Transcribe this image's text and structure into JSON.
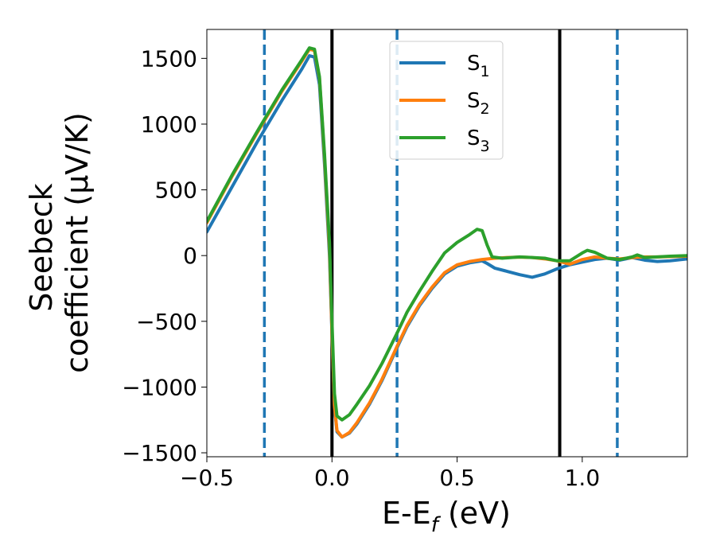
{
  "chart_data": {
    "type": "line",
    "title": "",
    "xlabel": "E-E",
    "xlabel_sub": "f",
    "xlabel_unit": " (eV)",
    "ylabel_line1": "Seebeck",
    "ylabel_line2": "coefficient  (μV/K)",
    "xlim": [
      -0.5,
      1.42
    ],
    "ylim": [
      -1530,
      1720
    ],
    "x_ticks": [
      -0.5,
      0.0,
      0.5,
      1.0
    ],
    "x_tick_labels": [
      "−0.5",
      "0.0",
      "0.5",
      "1.0"
    ],
    "y_ticks": [
      -1500,
      -1000,
      -500,
      0,
      500,
      1000,
      1500
    ],
    "y_tick_labels": [
      "−1500",
      "−1000",
      "−500",
      "0",
      "500",
      "1000",
      "1500"
    ],
    "grid": false,
    "legend_position": "top-center",
    "vertical_lines": [
      {
        "x": -0.27,
        "style": "dashed",
        "color": "#1f77b4"
      },
      {
        "x": 0.0,
        "style": "solid",
        "color": "#000000"
      },
      {
        "x": 0.26,
        "style": "dashed",
        "color": "#1f77b4"
      },
      {
        "x": 0.91,
        "style": "solid",
        "color": "#000000"
      },
      {
        "x": 1.14,
        "style": "dashed",
        "color": "#1f77b4"
      }
    ],
    "series": [
      {
        "name": "S",
        "subscript": "1",
        "color": "#1f77b4",
        "points": [
          [
            -0.5,
            180
          ],
          [
            -0.4,
            520
          ],
          [
            -0.3,
            860
          ],
          [
            -0.2,
            1180
          ],
          [
            -0.12,
            1420
          ],
          [
            -0.09,
            1520
          ],
          [
            -0.07,
            1510
          ],
          [
            -0.05,
            1300
          ],
          [
            -0.03,
            700
          ],
          [
            -0.01,
            0
          ],
          [
            0.0,
            -600
          ],
          [
            0.01,
            -1150
          ],
          [
            0.02,
            -1340
          ],
          [
            0.04,
            -1380
          ],
          [
            0.07,
            -1350
          ],
          [
            0.1,
            -1280
          ],
          [
            0.15,
            -1130
          ],
          [
            0.2,
            -950
          ],
          [
            0.26,
            -700
          ],
          [
            0.3,
            -540
          ],
          [
            0.35,
            -380
          ],
          [
            0.4,
            -250
          ],
          [
            0.45,
            -140
          ],
          [
            0.5,
            -80
          ],
          [
            0.55,
            -55
          ],
          [
            0.6,
            -40
          ],
          [
            0.62,
            -60
          ],
          [
            0.65,
            -95
          ],
          [
            0.7,
            -120
          ],
          [
            0.75,
            -145
          ],
          [
            0.8,
            -165
          ],
          [
            0.85,
            -140
          ],
          [
            0.9,
            -100
          ],
          [
            0.95,
            -70
          ],
          [
            1.0,
            -50
          ],
          [
            1.05,
            -30
          ],
          [
            1.1,
            -20
          ],
          [
            1.15,
            -35
          ],
          [
            1.2,
            -15
          ],
          [
            1.25,
            -35
          ],
          [
            1.3,
            -45
          ],
          [
            1.35,
            -40
          ],
          [
            1.42,
            -25
          ]
        ]
      },
      {
        "name": "S",
        "subscript": "2",
        "color": "#ff7f0e",
        "points": [
          [
            -0.5,
            250
          ],
          [
            -0.4,
            600
          ],
          [
            -0.3,
            930
          ],
          [
            -0.2,
            1250
          ],
          [
            -0.12,
            1480
          ],
          [
            -0.09,
            1570
          ],
          [
            -0.07,
            1560
          ],
          [
            -0.05,
            1350
          ],
          [
            -0.03,
            750
          ],
          [
            -0.01,
            50
          ],
          [
            0.0,
            -580
          ],
          [
            0.01,
            -1140
          ],
          [
            0.02,
            -1330
          ],
          [
            0.04,
            -1380
          ],
          [
            0.07,
            -1345
          ],
          [
            0.1,
            -1270
          ],
          [
            0.15,
            -1120
          ],
          [
            0.2,
            -940
          ],
          [
            0.26,
            -690
          ],
          [
            0.3,
            -530
          ],
          [
            0.35,
            -370
          ],
          [
            0.4,
            -240
          ],
          [
            0.45,
            -130
          ],
          [
            0.5,
            -70
          ],
          [
            0.55,
            -45
          ],
          [
            0.6,
            -30
          ],
          [
            0.65,
            -20
          ],
          [
            0.7,
            -15
          ],
          [
            0.75,
            -12
          ],
          [
            0.8,
            -15
          ],
          [
            0.85,
            -25
          ],
          [
            0.9,
            -40
          ],
          [
            0.95,
            -65
          ],
          [
            1.0,
            -30
          ],
          [
            1.05,
            -10
          ],
          [
            1.1,
            -20
          ],
          [
            1.15,
            -25
          ],
          [
            1.2,
            -15
          ],
          [
            1.25,
            -10
          ],
          [
            1.3,
            -10
          ],
          [
            1.35,
            -8
          ],
          [
            1.42,
            -5
          ]
        ]
      },
      {
        "name": "S",
        "subscript": "3",
        "color": "#2ca02c",
        "points": [
          [
            -0.5,
            260
          ],
          [
            -0.4,
            610
          ],
          [
            -0.3,
            940
          ],
          [
            -0.2,
            1260
          ],
          [
            -0.12,
            1490
          ],
          [
            -0.09,
            1580
          ],
          [
            -0.07,
            1570
          ],
          [
            -0.05,
            1360
          ],
          [
            -0.03,
            780
          ],
          [
            -0.01,
            100
          ],
          [
            0.0,
            -500
          ],
          [
            0.01,
            -1050
          ],
          [
            0.02,
            -1220
          ],
          [
            0.04,
            -1250
          ],
          [
            0.07,
            -1210
          ],
          [
            0.1,
            -1130
          ],
          [
            0.15,
            -990
          ],
          [
            0.2,
            -820
          ],
          [
            0.26,
            -590
          ],
          [
            0.3,
            -430
          ],
          [
            0.35,
            -270
          ],
          [
            0.4,
            -120
          ],
          [
            0.45,
            20
          ],
          [
            0.5,
            100
          ],
          [
            0.55,
            160
          ],
          [
            0.58,
            200
          ],
          [
            0.6,
            190
          ],
          [
            0.62,
            80
          ],
          [
            0.64,
            -10
          ],
          [
            0.68,
            -20
          ],
          [
            0.75,
            -10
          ],
          [
            0.8,
            -15
          ],
          [
            0.85,
            -20
          ],
          [
            0.9,
            -40
          ],
          [
            0.95,
            -40
          ],
          [
            1.0,
            20
          ],
          [
            1.02,
            40
          ],
          [
            1.05,
            25
          ],
          [
            1.1,
            -20
          ],
          [
            1.15,
            -30
          ],
          [
            1.2,
            -10
          ],
          [
            1.22,
            5
          ],
          [
            1.25,
            -15
          ],
          [
            1.3,
            -10
          ],
          [
            1.35,
            -5
          ],
          [
            1.42,
            0
          ]
        ]
      }
    ]
  }
}
